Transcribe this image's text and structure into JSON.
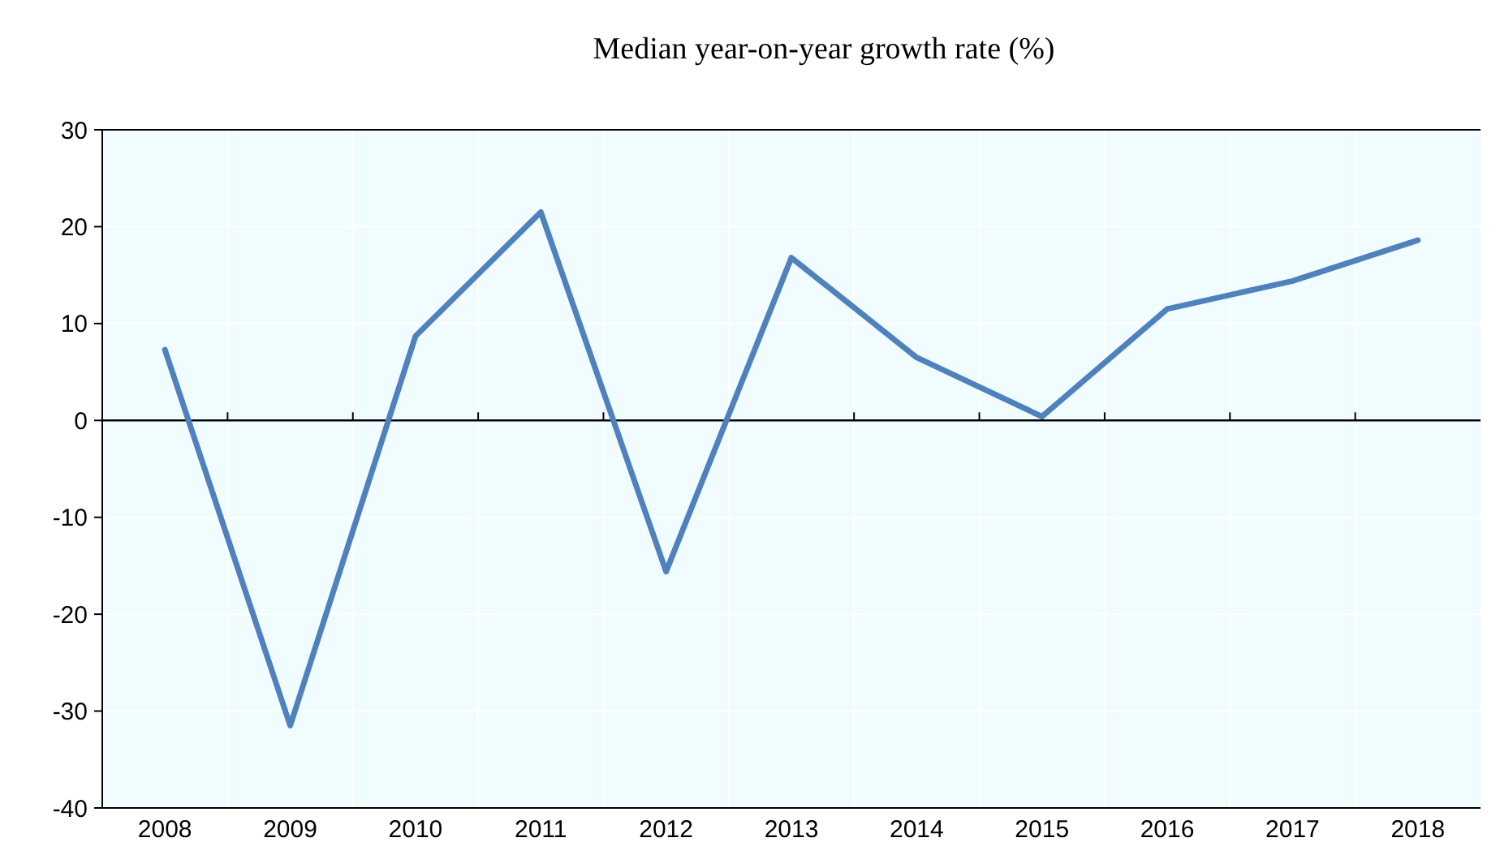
{
  "chart_data": {
    "type": "line",
    "title": "Median year-on-year growth rate (%)",
    "categories": [
      "2008",
      "2009",
      "2010",
      "2011",
      "2012",
      "2013",
      "2014",
      "2015",
      "2016",
      "2017",
      "2018"
    ],
    "series": [
      {
        "color": "#4f81bd",
        "values": [
          7.3,
          -31.5,
          8.7,
          21.5,
          -15.6,
          16.8,
          6.5,
          0.4,
          11.5,
          14.4,
          18.6
        ]
      }
    ],
    "ylim": [
      -40,
      30
    ],
    "yticks": [
      -40,
      -30,
      -20,
      -10,
      0,
      10,
      20,
      30
    ],
    "grid": true
  }
}
